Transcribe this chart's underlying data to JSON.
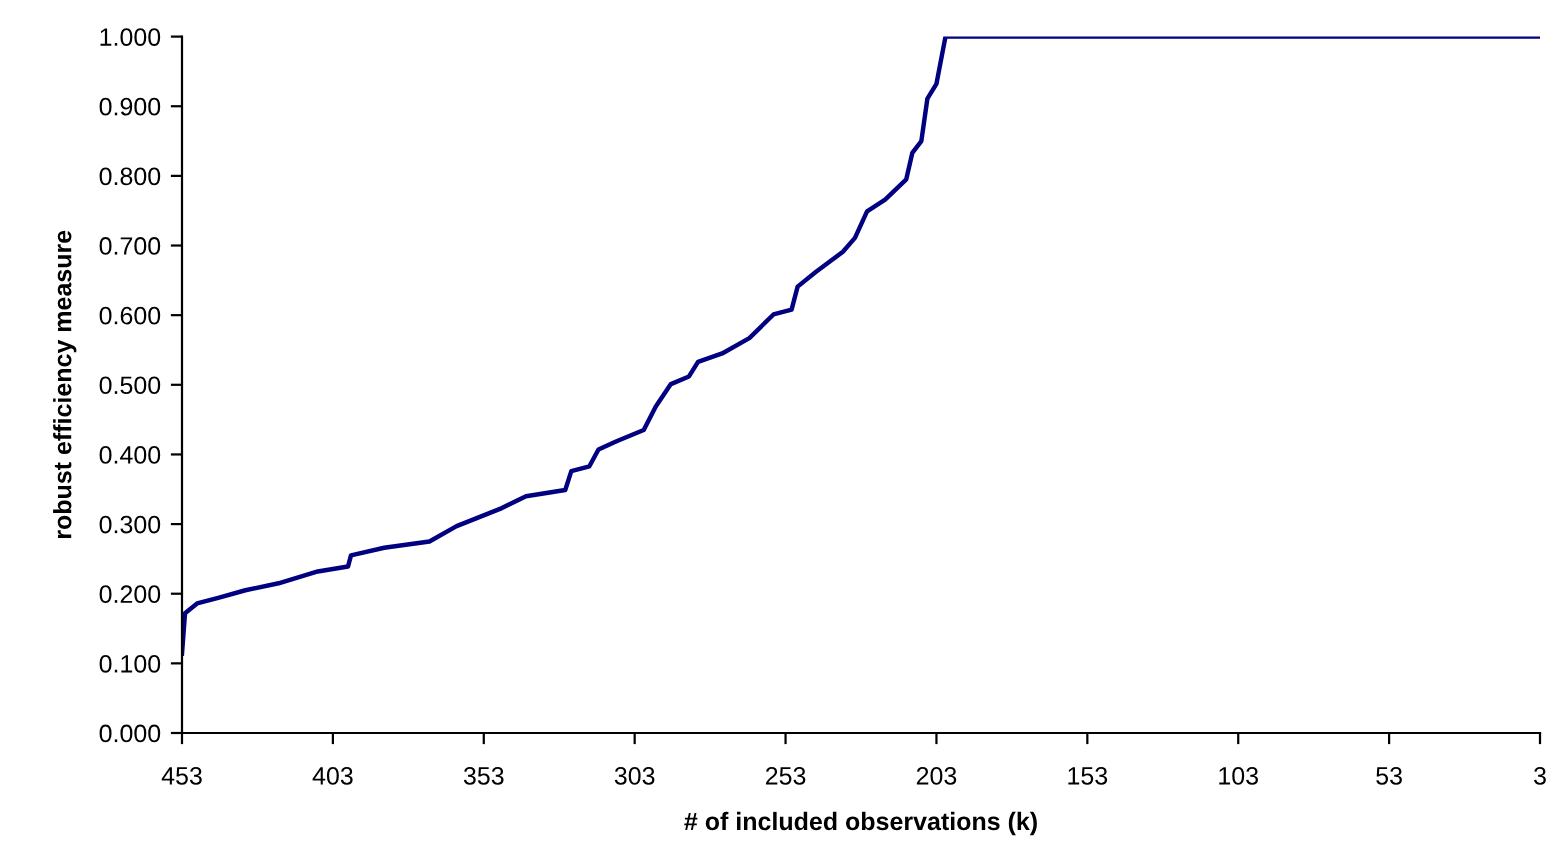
{
  "chart_data": {
    "type": "line",
    "xlabel": "# of included observations (k)",
    "ylabel": "robust efficiency measure",
    "xlim": [
      453,
      3
    ],
    "xticks": [
      453,
      403,
      353,
      303,
      253,
      203,
      153,
      103,
      53,
      3
    ],
    "ylim": [
      0,
      1
    ],
    "yticks": [
      {
        "value": 0,
        "label": "0.000"
      },
      {
        "value": 0.1,
        "label": "0.100"
      },
      {
        "value": 0.2,
        "label": "0.200"
      },
      {
        "value": 0.3,
        "label": "0.300"
      },
      {
        "value": 0.4,
        "label": "0.400"
      },
      {
        "value": 0.5,
        "label": "0.500"
      },
      {
        "value": 0.6,
        "label": "0.600"
      },
      {
        "value": 0.7,
        "label": "0.700"
      },
      {
        "value": 0.8,
        "label": "0.800"
      },
      {
        "value": 0.9,
        "label": "0.900"
      },
      {
        "value": 1,
        "label": "1.000"
      }
    ],
    "grid": false,
    "marker": "none",
    "line_style": "solid",
    "series": [
      {
        "color": "#000080",
        "x": [
          453,
          452,
          448,
          441,
          432,
          421,
          408,
          398,
          397,
          386,
          371,
          362,
          347,
          339,
          326,
          324,
          318,
          315,
          309,
          300,
          296,
          291,
          285,
          282,
          274,
          265,
          257,
          251,
          249,
          243,
          234,
          230,
          226,
          220,
          213,
          211,
          208,
          206,
          203,
          200,
          3
        ],
        "values": [
          0.114,
          0.172,
          0.186,
          0.194,
          0.205,
          0.215,
          0.232,
          0.239,
          0.255,
          0.266,
          0.275,
          0.297,
          0.323,
          0.34,
          0.349,
          0.376,
          0.383,
          0.407,
          0.419,
          0.435,
          0.469,
          0.501,
          0.512,
          0.533,
          0.545,
          0.567,
          0.601,
          0.608,
          0.641,
          0.662,
          0.691,
          0.711,
          0.749,
          0.766,
          0.795,
          0.833,
          0.85,
          0.911,
          0.932,
          1.0,
          1.0
        ]
      }
    ]
  }
}
